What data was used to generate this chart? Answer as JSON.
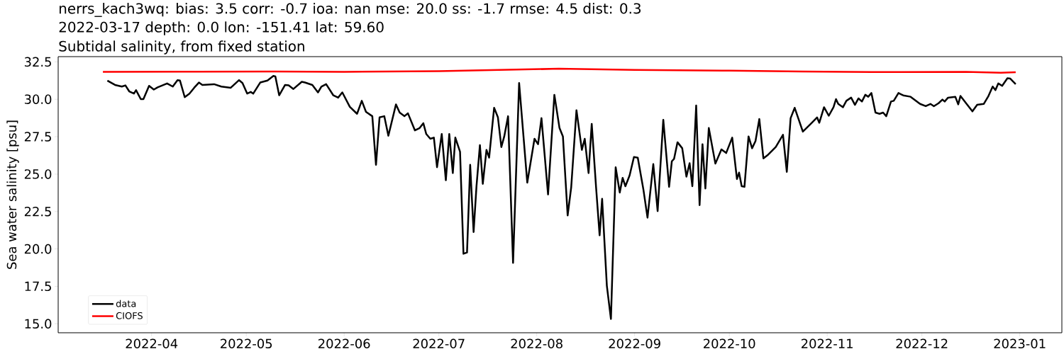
{
  "chart_data": {
    "type": "line",
    "title": "nerrs_kach3wq: bias: 3.5  corr: -0.7  ioa: nan  mse: 20.0  ss: -1.7  rmse: 4.5  dist: 0.3",
    "subtitle": "2022-03-17 depth: 0.0 lon: -151.41 lat: 59.60",
    "annotations": [
      "Subtidal salinity, from fixed station"
    ],
    "ylabel": "Sea water salinity [psu]",
    "xlim": [
      "2022-03-02T10:00",
      "2023-01-14T08:00"
    ],
    "ylim": [
      14.4,
      32.85
    ],
    "xticks": [
      "2022-04",
      "2022-05",
      "2022-06",
      "2022-07",
      "2022-08",
      "2022-09",
      "2022-10",
      "2022-11",
      "2022-12",
      "2023-01"
    ],
    "yticks": [
      {
        "value": 15,
        "label": "15.0"
      },
      {
        "value": 17.5,
        "label": "17.5"
      },
      {
        "value": 20,
        "label": "20.0"
      },
      {
        "value": 22.5,
        "label": "22.5"
      },
      {
        "value": 25,
        "label": "25.0"
      },
      {
        "value": 27.5,
        "label": "27.5"
      },
      {
        "value": 30,
        "label": "30.0"
      },
      {
        "value": 32.5,
        "label": "32.5"
      }
    ],
    "legend": "bottom left",
    "series": [
      {
        "name": "data",
        "color": "#000000",
        "x": [
          "2022-03-18T00:00",
          "2022-03-20T10:00",
          "2022-03-22T14:00",
          "2022-03-23T17:00",
          "2022-03-24T22:00",
          "2022-03-26T10:00",
          "2022-03-27T02:00",
          "2022-03-28T14:00",
          "2022-03-29T10:00",
          "2022-03-31T05:00",
          "2022-04-01T17:00",
          "2022-04-02T22:00",
          "2022-04-05T22:00",
          "2022-04-07T17:00",
          "2022-04-09T05:00",
          "2022-04-10T00:00",
          "2022-04-11T12:00",
          "2022-04-13T00:00",
          "2022-04-14T12:00",
          "2022-04-16T00:00",
          "2022-04-17T02:00",
          "2022-04-20T19:00",
          "2022-04-23T02:00",
          "2022-04-26T02:00",
          "2022-04-28T17:00",
          "2022-04-29T19:00",
          "2022-05-01T07:00",
          "2022-05-02T10:00",
          "2022-05-03T05:00",
          "2022-05-05T10:00",
          "2022-05-07T17:00",
          "2022-05-09T14:00",
          "2022-05-10T05:00",
          "2022-05-11T10:00",
          "2022-05-13T07:00",
          "2022-05-14T10:00",
          "2022-05-15T22:00",
          "2022-05-18T14:00",
          "2022-05-19T14:00",
          "2022-05-21T22:00",
          "2022-05-23T17:00",
          "2022-05-24T19:00",
          "2022-05-26T07:00",
          "2022-05-28T14:00",
          "2022-05-30T02:00",
          "2022-05-31T10:00",
          "2022-06-02T19:00",
          "2022-06-05T02:00",
          "2022-06-06T14:00",
          "2022-06-07T22:00",
          "2022-06-09T22:00",
          "2022-06-11T02:00",
          "2022-06-12T05:00",
          "2022-06-13T17:00",
          "2022-06-15T00:00",
          "2022-06-17T10:00",
          "2022-06-18T14:00",
          "2022-06-20T02:00",
          "2022-06-21T05:00",
          "2022-06-23T10:00",
          "2022-06-24T22:00",
          "2022-06-26T02:00",
          "2022-06-27T00:00",
          "2022-06-28T07:00",
          "2022-06-29T10:00",
          "2022-06-30T10:00",
          "2022-07-01T22:00",
          "2022-07-03T05:00",
          "2022-07-04T07:00",
          "2022-07-05T10:00",
          "2022-07-06T05:00",
          "2022-07-07T17:00",
          "2022-07-08T19:00",
          "2022-07-09T22:00",
          "2022-07-10T22:00",
          "2022-07-12T00:00",
          "2022-07-12T22:00",
          "2022-07-14T00:00",
          "2022-07-14T22:00",
          "2022-07-16T02:00",
          "2022-07-16T22:00",
          "2022-07-18T12:00",
          "2022-07-19T17:00",
          "2022-07-20T19:00",
          "2022-07-21T17:00",
          "2022-07-22T22:00",
          "2022-07-24T12:00",
          "2022-07-26T10:00",
          "2022-07-29T00:00",
          "2022-07-31T07:00",
          "2022-08-01T10:00",
          "2022-08-02T12:00",
          "2022-08-04T14:00",
          "2022-08-06T14:00",
          "2022-08-08T05:00",
          "2022-08-09T07:00",
          "2022-08-10T19:00",
          "2022-08-11T22:00",
          "2022-08-13T14:00",
          "2022-08-15T07:00",
          "2022-08-16T05:00",
          "2022-08-17T10:00",
          "2022-08-18T10:00",
          "2022-08-19T19:00",
          "2022-08-20T22:00",
          "2022-08-21T17:00",
          "2022-08-23T05:00",
          "2022-08-24T12:00",
          "2022-08-26T00:00",
          "2022-08-27T07:00",
          "2022-08-28T05:00",
          "2022-08-29T02:00",
          "2022-08-30T10:00",
          "2022-08-31T19:00",
          "2022-09-02T00:00",
          "2022-09-03T19:00",
          "2022-09-05T02:00",
          "2022-09-06T22:00",
          "2022-09-08T07:00",
          "2022-09-10T02:00",
          "2022-09-11T22:00",
          "2022-09-12T19:00",
          "2022-09-13T12:00",
          "2022-09-14T14:00",
          "2022-09-16T02:00",
          "2022-09-17T10:00",
          "2022-09-18T10:00",
          "2022-09-19T07:00",
          "2022-09-20T12:00",
          "2022-09-21T14:00",
          "2022-09-22T12:00",
          "2022-09-23T10:00",
          "2022-09-24T12:00",
          "2022-09-26T14:00",
          "2022-09-28T12:00",
          "2022-09-30T00:00",
          "2022-10-01T22:00",
          "2022-10-03T10:00",
          "2022-10-04T02:00",
          "2022-10-04T22:00",
          "2022-10-05T19:00",
          "2022-10-07T02:00",
          "2022-10-08T05:00",
          "2022-10-09T07:00",
          "2022-10-10T12:00",
          "2022-10-11T19:00",
          "2022-10-13T02:00",
          "2022-10-15T17:00",
          "2022-10-18T00:00",
          "2022-10-19T05:00",
          "2022-10-20T10:00",
          "2022-10-21T17:00",
          "2022-10-24T07:00",
          "2022-10-26T22:00",
          "2022-10-28T19:00",
          "2022-10-29T12:00",
          "2022-10-31T00:00",
          "2022-11-01T12:00",
          "2022-11-03T00:00",
          "2022-11-03T19:00",
          "2022-11-04T12:00",
          "2022-11-06T00:00",
          "2022-11-07T02:00",
          "2022-11-08T14:00",
          "2022-11-09T19:00",
          "2022-11-10T22:00",
          "2022-11-12T00:00",
          "2022-11-13T02:00",
          "2022-11-14T00:00",
          "2022-11-15T00:00",
          "2022-11-16T07:00",
          "2022-11-17T14:00",
          "2022-11-18T17:00",
          "2022-11-19T17:00",
          "2022-11-21T05:00",
          "2022-11-22T02:00",
          "2022-11-23T14:00",
          "2022-11-25T02:00",
          "2022-11-27T10:00",
          "2022-11-30T10:00",
          "2022-12-02T05:00",
          "2022-12-03T17:00",
          "2022-12-04T19:00",
          "2022-12-06T07:00",
          "2022-12-07T12:00",
          "2022-12-08T05:00",
          "2022-12-09T07:00",
          "2022-12-11T14:00",
          "2022-12-12T12:00",
          "2022-12-13T05:00",
          "2022-12-15T07:00",
          "2022-12-17T00:00",
          "2022-12-18T12:00",
          "2022-12-20T14:00",
          "2022-12-22T02:00",
          "2022-12-23T10:00",
          "2022-12-24T07:00",
          "2022-12-25T05:00",
          "2022-12-26T10:00",
          "2022-12-28T02:00",
          "2022-12-29T00:00",
          "2022-12-30T17:00"
        ],
        "values": [
          31.25,
          30.96,
          30.85,
          30.93,
          30.53,
          30.38,
          30.61,
          30.01,
          30.01,
          30.9,
          30.65,
          30.8,
          31.06,
          30.85,
          31.28,
          31.25,
          30.14,
          30.38,
          30.77,
          31.12,
          30.96,
          31.01,
          30.85,
          30.77,
          31.28,
          31.09,
          30.38,
          30.49,
          30.38,
          31.12,
          31.25,
          31.56,
          31.53,
          30.27,
          30.96,
          30.93,
          30.69,
          31.17,
          31.12,
          30.96,
          30.46,
          30.85,
          31.01,
          30.26,
          30.11,
          30.46,
          29.5,
          29.03,
          29.9,
          29.16,
          28.87,
          25.62,
          28.79,
          28.87,
          27.56,
          29.66,
          29.11,
          28.87,
          29.06,
          27.92,
          28.08,
          28.4,
          27.68,
          27.36,
          27.44,
          25.46,
          27.68,
          24.59,
          27.68,
          25.07,
          27.44,
          26.49,
          19.68,
          19.76,
          25.62,
          21.13,
          24.19,
          26.94,
          24.35,
          26.62,
          26.1,
          29.43,
          28.79,
          26.81,
          27.52,
          28.87,
          19.07,
          31.09,
          24.43,
          27.36,
          27.0,
          28.74,
          23.64,
          30.3,
          28.08,
          27.52,
          22.24,
          24.12,
          29.27,
          26.62,
          27.36,
          25.07,
          28.36,
          24.12,
          20.91,
          23.35,
          17.54,
          15.32,
          25.46,
          23.77,
          24.75,
          24.19,
          24.91,
          26.14,
          26.1,
          23.96,
          22.09,
          25.67,
          22.53,
          28.63,
          24.15,
          25.86,
          26.02,
          27.13,
          26.73,
          24.83,
          25.73,
          24.19,
          29.58,
          22.93,
          27.0,
          24.04,
          28.08,
          25.7,
          26.65,
          26.41,
          27.44,
          24.67,
          25.1,
          24.19,
          24.15,
          27.52,
          26.73,
          27.21,
          28.68,
          26.05,
          26.26,
          26.81,
          27.63,
          25.15,
          28.74,
          29.43,
          27.84,
          28.39,
          28.79,
          28.43,
          29.47,
          28.9,
          29.47,
          30.01,
          29.69,
          29.47,
          29.9,
          30.11,
          29.63,
          30.06,
          29.85,
          30.3,
          30.17,
          30.42,
          29.11,
          29.03,
          29.11,
          28.87,
          29.85,
          29.9,
          30.42,
          30.26,
          30.17,
          29.69,
          29.54,
          29.69,
          29.54,
          29.74,
          29.98,
          29.85,
          30.11,
          30.17,
          29.66,
          30.22,
          29.66,
          29.19,
          29.63,
          29.69,
          30.22,
          30.85,
          30.61,
          31.06,
          30.9,
          31.41,
          31.38,
          31.01
        ]
      },
      {
        "name": "CIOFS",
        "color": "#ff0000",
        "x": [
          "2022-03-16T14:00",
          "2022-04-15",
          "2022-05-10",
          "2022-06-01",
          "2022-07-01",
          "2022-07-20",
          "2022-08-08",
          "2022-09-01",
          "2022-10-01",
          "2022-10-24",
          "2022-11-15",
          "2022-12-15",
          "2022-12-26",
          "2022-12-30T17:00"
        ],
        "values": [
          31.83,
          31.84,
          31.85,
          31.83,
          31.88,
          31.96,
          32.04,
          31.96,
          31.91,
          31.85,
          31.82,
          31.83,
          31.77,
          31.81
        ]
      }
    ]
  }
}
